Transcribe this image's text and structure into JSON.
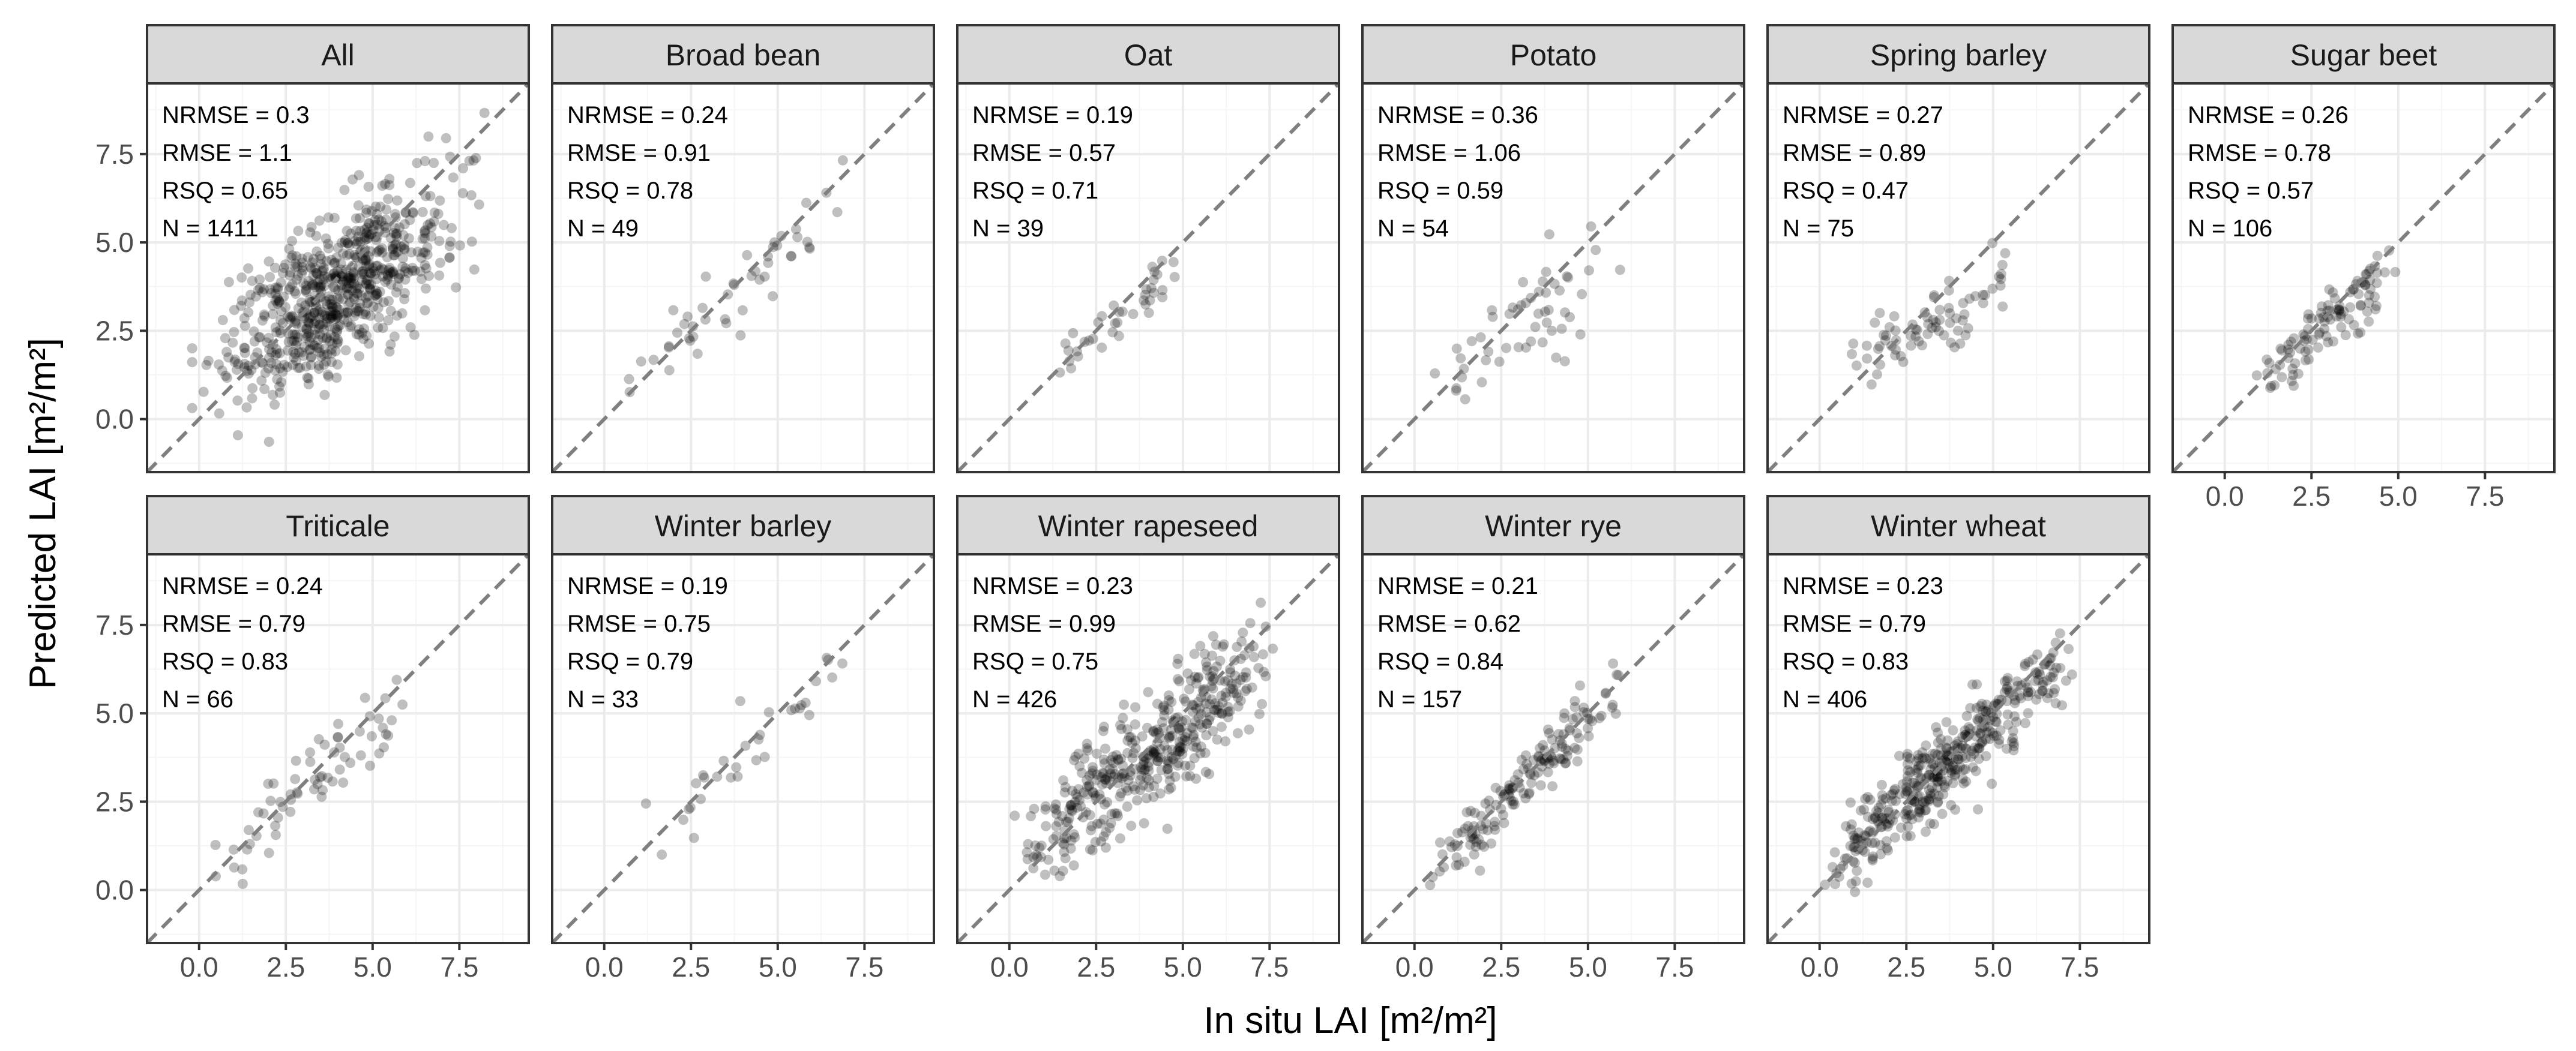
{
  "chart_data": {
    "type": "scatter",
    "xlabel": "In situ LAI [m²/m²]",
    "ylabel": "Predicted LAI [m²/m²]",
    "xlim": [
      -1.5,
      9.5
    ],
    "ylim": [
      -1.5,
      9.5
    ],
    "xticks": [
      0,
      2.5,
      5,
      7.5
    ],
    "xtick_labels": [
      "0.0",
      "2.5",
      "5.0",
      "7.5"
    ],
    "yticks": [
      0,
      2.5,
      5,
      7.5
    ],
    "ytick_labels": [
      "0.0",
      "2.5",
      "5.0",
      "7.5"
    ],
    "reference_line": "1:1 dashed",
    "panels": [
      {
        "name": "All",
        "nrmse": "NRMSE = 0.3",
        "rmse": "RMSE = 1.1",
        "rsq": "RSQ = 0.65",
        "n": "N = 1411",
        "n_value": 1411,
        "slope": 0.58,
        "intercept": 1.35,
        "sd": 1.05,
        "x_range": [
          -0.2,
          8.5
        ],
        "n_draw": 700
      },
      {
        "name": "Broad bean",
        "nrmse": "NRMSE = 0.24",
        "rmse": "RMSE = 0.91",
        "rsq": "RSQ = 0.78",
        "n": "N = 49",
        "n_value": 49,
        "slope": 0.85,
        "intercept": 0.3,
        "sd": 0.55,
        "x_range": [
          0.3,
          7.4
        ],
        "n_draw": 49
      },
      {
        "name": "Oat",
        "nrmse": "NRMSE = 0.19",
        "rmse": "RMSE = 0.57",
        "rsq": "RSQ = 0.71",
        "n": "N = 39",
        "n_value": 39,
        "slope": 0.85,
        "intercept": 0.35,
        "sd": 0.35,
        "x_range": [
          1.2,
          5.6
        ],
        "n_draw": 39
      },
      {
        "name": "Potato",
        "nrmse": "NRMSE = 0.36",
        "rmse": "RMSE = 1.06",
        "rsq": "RSQ = 0.59",
        "n": "N = 54",
        "n_value": 54,
        "slope": 0.7,
        "intercept": 0.6,
        "sd": 0.75,
        "x_range": [
          0.0,
          6.2
        ],
        "n_draw": 54
      },
      {
        "name": "Spring barley",
        "nrmse": "NRMSE = 0.27",
        "rmse": "RMSE = 0.89",
        "rsq": "RSQ = 0.47",
        "n": "N = 75",
        "n_value": 75,
        "slope": 0.45,
        "intercept": 1.3,
        "sd": 0.5,
        "x_range": [
          0.2,
          6.3
        ],
        "n_draw": 75
      },
      {
        "name": "Sugar beet",
        "nrmse": "NRMSE = 0.26",
        "rmse": "RMSE = 0.78",
        "rsq": "RSQ = 0.57",
        "n": "N = 106",
        "n_value": 106,
        "slope": 0.75,
        "intercept": 0.5,
        "sd": 0.45,
        "x_range": [
          0.8,
          5.2
        ],
        "n_draw": 106
      },
      {
        "name": "Triticale",
        "nrmse": "NRMSE = 0.24",
        "rmse": "RMSE = 0.79",
        "rsq": "RSQ = 0.83",
        "n": "N = 66",
        "n_value": 66,
        "slope": 0.8,
        "intercept": 0.5,
        "sd": 0.5,
        "x_range": [
          0.0,
          6.5
        ],
        "n_draw": 66
      },
      {
        "name": "Winter barley",
        "nrmse": "NRMSE = 0.19",
        "rmse": "RMSE = 0.75",
        "rsq": "RSQ = 0.79",
        "n": "N = 33",
        "n_value": 33,
        "slope": 0.9,
        "intercept": 0.2,
        "sd": 0.6,
        "x_range": [
          0.4,
          7.2
        ],
        "n_draw": 33
      },
      {
        "name": "Winter rapeseed",
        "nrmse": "NRMSE = 0.23",
        "rmse": "RMSE = 0.99",
        "rsq": "RSQ = 0.75",
        "n": "N = 426",
        "n_value": 426,
        "slope": 0.78,
        "intercept": 0.7,
        "sd": 0.85,
        "x_range": [
          0.0,
          8.0
        ],
        "n_draw": 426
      },
      {
        "name": "Winter rye",
        "nrmse": "NRMSE = 0.21",
        "rmse": "RMSE = 0.62",
        "rsq": "RSQ = 0.84",
        "n": "N = 157",
        "n_value": 157,
        "slope": 0.95,
        "intercept": 0.1,
        "sd": 0.4,
        "x_range": [
          0.0,
          6.2
        ],
        "n_draw": 157
      },
      {
        "name": "Winter wheat",
        "nrmse": "NRMSE = 0.23",
        "rmse": "RMSE = 0.79",
        "rsq": "RSQ = 0.83",
        "n": "N = 406",
        "n_value": 406,
        "slope": 0.85,
        "intercept": 0.45,
        "sd": 0.55,
        "x_range": [
          0.0,
          7.7
        ],
        "n_draw": 406
      }
    ]
  },
  "colors": {
    "point": "#000000",
    "point_opacity": 0.25,
    "grid_major": "#ebebeb",
    "grid_minor": "#f5f5f5",
    "strip_fill": "#d9d9d9",
    "border": "#333333",
    "reference_line": "#7f7f7f"
  }
}
